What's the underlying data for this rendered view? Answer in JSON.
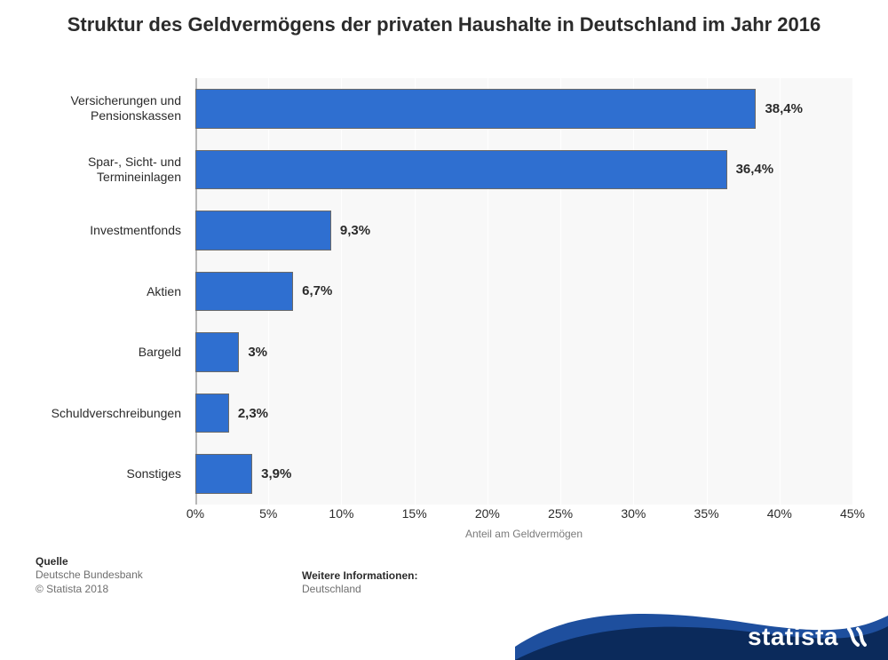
{
  "title": "Struktur des Geldvermögens der privaten Haushalte in Deutschland im Jahr 2016",
  "chart": {
    "type": "bar-horizontal",
    "x_axis_title": "Anteil am Geldvermögen",
    "xlim": [
      0,
      45
    ],
    "xtick_step": 5,
    "xticks": [
      "0%",
      "5%",
      "10%",
      "15%",
      "20%",
      "25%",
      "30%",
      "35%",
      "40%",
      "45%"
    ],
    "plot_bg": "#f8f8f8",
    "grid_color": "#ffffff",
    "bar_color": "#2f6fd0",
    "bar_border_color": "#6a6a6a",
    "label_fontsize": 14,
    "value_fontsize": 15,
    "value_fontweight": "bold",
    "categories": [
      "Versicherungen und Pensionskassen",
      "Spar-, Sicht- und Termineinlagen",
      "Investmentfonds",
      "Aktien",
      "Bargeld",
      "Schuldverschreibungen",
      "Sonstiges"
    ],
    "values": [
      38.4,
      36.4,
      9.3,
      6.7,
      3.0,
      2.3,
      3.9
    ],
    "value_labels": [
      "38,4%",
      "36,4%",
      "9,3%",
      "6,7%",
      "3%",
      "2,3%",
      "3,9%"
    ]
  },
  "footer": {
    "source_heading": "Quelle",
    "source_line1": "Deutsche Bundesbank",
    "source_line2": "© Statista 2018",
    "info_heading": "Weitere Informationen:",
    "info_line1": "Deutschland"
  },
  "brand": {
    "name": "statista",
    "wave_dark": "#0b2a5b",
    "wave_light": "#1e4f9e",
    "text_color": "#ffffff"
  }
}
